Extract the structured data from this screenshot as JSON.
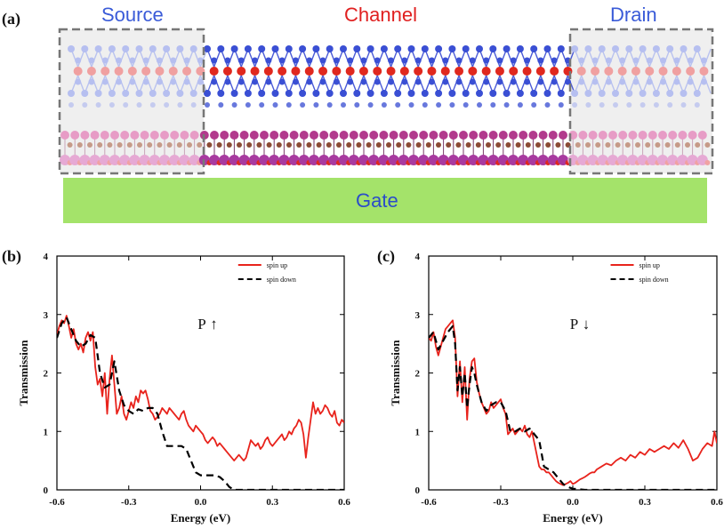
{
  "figure": {
    "panel_a_label": "(a)",
    "panel_b_label": "(b)",
    "panel_c_label": "(c)",
    "source_label": "Source",
    "channel_label": "Channel",
    "drain_label": "Drain",
    "gate_label": "Gate"
  },
  "colors": {
    "spin_up": "#e8231c",
    "spin_down": "#000000",
    "gate": "#a4e36a",
    "source_text": "#3a5bd8",
    "channel_text": "#e02020"
  },
  "chart_data": [
    {
      "type": "line",
      "panel": "(b)",
      "polarization": "P",
      "arrow": "↑",
      "xlabel": "Energy (eV)",
      "ylabel": "Transmission",
      "xlim": [
        -0.6,
        0.6
      ],
      "ylim": [
        0,
        4
      ],
      "xticks": [
        "-0.6",
        "-0.3",
        "0.0",
        "0.3",
        "0.6"
      ],
      "yticks": [
        "0",
        "1",
        "2",
        "3",
        "4"
      ],
      "legend": [
        "spin up",
        "spin down"
      ],
      "series": [
        {
          "name": "spin up",
          "x": [
            -0.6,
            -0.59,
            -0.58,
            -0.57,
            -0.56,
            -0.55,
            -0.54,
            -0.53,
            -0.52,
            -0.51,
            -0.5,
            -0.49,
            -0.48,
            -0.47,
            -0.46,
            -0.45,
            -0.44,
            -0.43,
            -0.42,
            -0.41,
            -0.4,
            -0.39,
            -0.38,
            -0.37,
            -0.36,
            -0.35,
            -0.34,
            -0.33,
            -0.32,
            -0.31,
            -0.3,
            -0.29,
            -0.28,
            -0.27,
            -0.26,
            -0.25,
            -0.24,
            -0.23,
            -0.22,
            -0.21,
            -0.2,
            -0.19,
            -0.18,
            -0.17,
            -0.16,
            -0.15,
            -0.14,
            -0.13,
            -0.12,
            -0.11,
            -0.1,
            -0.09,
            -0.08,
            -0.07,
            -0.06,
            -0.05,
            -0.04,
            -0.03,
            -0.02,
            -0.01,
            0.0,
            0.01,
            0.02,
            0.03,
            0.04,
            0.05,
            0.06,
            0.07,
            0.08,
            0.09,
            0.1,
            0.11,
            0.12,
            0.13,
            0.14,
            0.15,
            0.16,
            0.17,
            0.18,
            0.19,
            0.2,
            0.21,
            0.22,
            0.23,
            0.24,
            0.25,
            0.26,
            0.27,
            0.28,
            0.29,
            0.3,
            0.31,
            0.32,
            0.33,
            0.34,
            0.35,
            0.36,
            0.37,
            0.38,
            0.39,
            0.4,
            0.41,
            0.42,
            0.43,
            0.44,
            0.45,
            0.46,
            0.47,
            0.48,
            0.49,
            0.5,
            0.51,
            0.52,
            0.53,
            0.54,
            0.55,
            0.56,
            0.57,
            0.58,
            0.59,
            0.6
          ],
          "values": [
            2.65,
            2.8,
            2.9,
            2.85,
            2.98,
            2.8,
            2.6,
            2.75,
            2.5,
            2.4,
            2.5,
            2.35,
            2.6,
            2.7,
            2.55,
            2.7,
            2.1,
            1.8,
            1.9,
            1.6,
            2.0,
            1.3,
            1.9,
            2.3,
            1.8,
            1.3,
            1.4,
            1.6,
            1.3,
            1.2,
            1.35,
            1.5,
            1.4,
            1.6,
            1.5,
            1.7,
            1.65,
            1.7,
            1.55,
            1.35,
            1.3,
            1.2,
            1.25,
            1.3,
            1.4,
            1.35,
            1.3,
            1.4,
            1.35,
            1.3,
            1.25,
            1.2,
            1.3,
            1.35,
            1.2,
            1.1,
            1.05,
            1.0,
            1.1,
            1.05,
            1.0,
            0.95,
            0.85,
            0.8,
            0.85,
            0.9,
            0.85,
            0.75,
            0.8,
            0.75,
            0.7,
            0.65,
            0.6,
            0.55,
            0.5,
            0.55,
            0.6,
            0.55,
            0.5,
            0.55,
            0.7,
            0.85,
            0.8,
            0.75,
            0.8,
            0.7,
            0.75,
            0.85,
            0.9,
            0.8,
            0.75,
            0.8,
            0.85,
            0.9,
            0.95,
            0.85,
            0.9,
            1.0,
            0.95,
            1.05,
            1.1,
            1.2,
            1.15,
            0.95,
            0.55,
            0.9,
            1.2,
            1.5,
            1.3,
            1.4,
            1.3,
            1.35,
            1.45,
            1.4,
            1.3,
            1.25,
            1.35,
            1.15,
            1.1,
            1.2,
            1.15
          ],
          "style": "solid"
        },
        {
          "name": "spin down",
          "x": [
            -0.6,
            -0.58,
            -0.56,
            -0.54,
            -0.52,
            -0.5,
            -0.48,
            -0.46,
            -0.44,
            -0.42,
            -0.4,
            -0.38,
            -0.36,
            -0.34,
            -0.32,
            -0.3,
            -0.28,
            -0.26,
            -0.24,
            -0.22,
            -0.2,
            -0.18,
            -0.16,
            -0.14,
            -0.12,
            -0.1,
            -0.08,
            -0.06,
            -0.04,
            -0.02,
            0.0,
            0.02,
            0.04,
            0.06,
            0.08,
            0.1,
            0.12,
            0.14,
            0.16,
            0.3,
            0.45,
            0.6
          ],
          "values": [
            2.6,
            2.85,
            2.95,
            2.75,
            2.55,
            2.45,
            2.5,
            2.65,
            2.6,
            2.0,
            1.75,
            1.8,
            2.2,
            1.7,
            1.45,
            1.35,
            1.3,
            1.38,
            1.35,
            1.4,
            1.4,
            1.3,
            1.0,
            0.75,
            0.75,
            0.75,
            0.75,
            0.7,
            0.5,
            0.3,
            0.25,
            0.25,
            0.25,
            0.25,
            0.22,
            0.15,
            0.05,
            0.0,
            0.0,
            0.0,
            0.0,
            0.0
          ],
          "style": "dashed"
        }
      ]
    },
    {
      "type": "line",
      "panel": "(c)",
      "polarization": "P",
      "arrow": "↓",
      "xlabel": "Energy (eV)",
      "ylabel": "Transmission",
      "xlim": [
        -0.6,
        0.6
      ],
      "ylim": [
        0,
        4
      ],
      "xticks": [
        "-0.6",
        "-0.3",
        "0.0",
        "0.3",
        "0.6"
      ],
      "yticks": [
        "0",
        "1",
        "2",
        "3",
        "4"
      ],
      "legend": [
        "spin up",
        "spin down"
      ],
      "series": [
        {
          "name": "spin up",
          "x": [
            -0.6,
            -0.59,
            -0.58,
            -0.57,
            -0.56,
            -0.55,
            -0.54,
            -0.53,
            -0.52,
            -0.51,
            -0.5,
            -0.49,
            -0.48,
            -0.47,
            -0.46,
            -0.45,
            -0.44,
            -0.43,
            -0.42,
            -0.41,
            -0.4,
            -0.39,
            -0.38,
            -0.37,
            -0.36,
            -0.35,
            -0.34,
            -0.33,
            -0.32,
            -0.31,
            -0.3,
            -0.29,
            -0.28,
            -0.27,
            -0.26,
            -0.25,
            -0.24,
            -0.23,
            -0.22,
            -0.21,
            -0.2,
            -0.19,
            -0.18,
            -0.17,
            -0.16,
            -0.15,
            -0.14,
            -0.13,
            -0.12,
            -0.11,
            -0.1,
            -0.09,
            -0.08,
            -0.07,
            -0.06,
            -0.05,
            -0.04,
            -0.03,
            -0.02,
            -0.01,
            0.0,
            0.01,
            0.02,
            0.03,
            0.04,
            0.05,
            0.06,
            0.07,
            0.08,
            0.09,
            0.1,
            0.12,
            0.14,
            0.16,
            0.18,
            0.2,
            0.22,
            0.24,
            0.26,
            0.28,
            0.3,
            0.32,
            0.34,
            0.36,
            0.38,
            0.4,
            0.42,
            0.44,
            0.46,
            0.48,
            0.5,
            0.52,
            0.54,
            0.56,
            0.58,
            0.59,
            0.6
          ],
          "values": [
            2.6,
            2.55,
            2.7,
            2.45,
            2.3,
            2.45,
            2.6,
            2.75,
            2.8,
            2.85,
            2.9,
            2.6,
            1.6,
            2.2,
            1.5,
            2.1,
            1.2,
            1.9,
            2.2,
            2.25,
            1.85,
            1.65,
            1.5,
            1.4,
            1.3,
            1.35,
            1.5,
            1.4,
            1.45,
            1.5,
            1.55,
            1.4,
            1.3,
            0.95,
            1.0,
            1.05,
            0.95,
            1.0,
            1.05,
            1.0,
            1.1,
            0.95,
            0.9,
            1.0,
            0.8,
            0.6,
            0.4,
            0.35,
            0.35,
            0.3,
            0.3,
            0.25,
            0.2,
            0.15,
            0.12,
            0.1,
            0.08,
            0.1,
            0.12,
            0.15,
            0.1,
            0.12,
            0.15,
            0.18,
            0.2,
            0.22,
            0.25,
            0.28,
            0.3,
            0.3,
            0.35,
            0.4,
            0.45,
            0.42,
            0.5,
            0.55,
            0.5,
            0.6,
            0.55,
            0.65,
            0.6,
            0.7,
            0.65,
            0.7,
            0.75,
            0.7,
            0.8,
            0.72,
            0.85,
            0.7,
            0.5,
            0.55,
            0.7,
            0.8,
            0.75,
            1.0,
            0.8
          ],
          "style": "solid"
        },
        {
          "name": "spin down",
          "x": [
            -0.6,
            -0.58,
            -0.56,
            -0.54,
            -0.52,
            -0.5,
            -0.49,
            -0.48,
            -0.47,
            -0.46,
            -0.45,
            -0.44,
            -0.43,
            -0.42,
            -0.41,
            -0.4,
            -0.38,
            -0.36,
            -0.34,
            -0.32,
            -0.3,
            -0.28,
            -0.26,
            -0.24,
            -0.22,
            -0.2,
            -0.18,
            -0.16,
            -0.14,
            -0.12,
            -0.1,
            -0.08,
            -0.06,
            -0.04,
            -0.02,
            0.0,
            0.05,
            0.2,
            0.4,
            0.6
          ],
          "values": [
            2.6,
            2.7,
            2.4,
            2.55,
            2.7,
            2.8,
            2.5,
            1.7,
            2.1,
            1.6,
            2.0,
            1.4,
            1.8,
            2.1,
            2.0,
            1.8,
            1.5,
            1.35,
            1.45,
            1.5,
            1.5,
            1.35,
            1.0,
            1.0,
            1.05,
            1.0,
            1.05,
            0.95,
            0.85,
            0.4,
            0.35,
            0.3,
            0.2,
            0.1,
            0.05,
            0.02,
            0.0,
            0.0,
            0.0,
            0.0
          ],
          "style": "dashed"
        }
      ]
    }
  ]
}
